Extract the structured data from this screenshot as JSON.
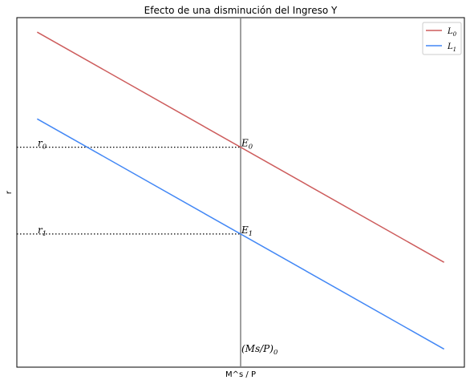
{
  "chart_data": {
    "type": "line",
    "title": "Efecto de una disminución del Ingreso Y",
    "xlabel": "M^s / P",
    "ylabel": "r",
    "grid": false,
    "legend_position": "top-right",
    "xlim": [
      -5,
      105
    ],
    "ylim": [
      -125,
      20
    ],
    "series": [
      {
        "name_base": "L",
        "name_sub": "0",
        "color": "#cd5c5c",
        "x": [
          0,
          100
        ],
        "y": [
          14,
          -81.5
        ]
      },
      {
        "name_base": "L",
        "name_sub": "1",
        "color": "#4287f5",
        "x": [
          0,
          100
        ],
        "y": [
          -22,
          -117.5
        ]
      }
    ],
    "vertical_line": {
      "x": 50,
      "color": "#808080",
      "label_base": "(Ms/P)",
      "label_sub": "0"
    },
    "equilibria": [
      {
        "label_base": "E",
        "label_sub": "0",
        "r_label_base": "r",
        "r_label_sub": "0",
        "x": 50,
        "y": -33.75
      },
      {
        "label_base": "E",
        "label_sub": "1",
        "r_label_base": "r",
        "r_label_sub": "1",
        "x": 50,
        "y": -69.75
      }
    ]
  }
}
